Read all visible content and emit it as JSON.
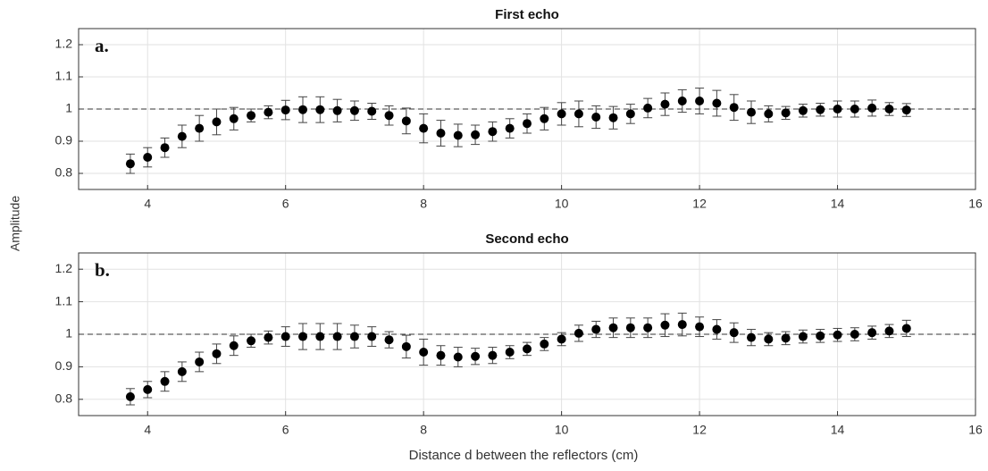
{
  "ylabel": "Amplitude",
  "chart_data": [
    {
      "type": "scatter",
      "title": "First echo",
      "annotation": "a.",
      "x": [
        3.75,
        4,
        4.25,
        4.5,
        4.75,
        5,
        5.25,
        5.5,
        5.75,
        6,
        6.25,
        6.5,
        6.75,
        7,
        7.25,
        7.5,
        7.75,
        8,
        8.25,
        8.5,
        8.75,
        9,
        9.25,
        9.5,
        9.75,
        10,
        10.25,
        10.5,
        10.75,
        11,
        11.25,
        11.5,
        11.75,
        12,
        12.25,
        12.5,
        12.75,
        13,
        13.25,
        13.5,
        13.75,
        14,
        14.25,
        14.5,
        14.75,
        15
      ],
      "values": [
        0.83,
        0.85,
        0.88,
        0.915,
        0.94,
        0.96,
        0.97,
        0.98,
        0.99,
        0.997,
        0.998,
        0.998,
        0.995,
        0.995,
        0.993,
        0.98,
        0.963,
        0.94,
        0.925,
        0.918,
        0.92,
        0.93,
        0.94,
        0.955,
        0.97,
        0.985,
        0.985,
        0.975,
        0.973,
        0.985,
        1.003,
        1.015,
        1.025,
        1.025,
        1.018,
        1.005,
        0.99,
        0.985,
        0.988,
        0.995,
        0.998,
        1.0,
        1.0,
        1.003,
        1.0,
        0.997
      ],
      "errors": [
        0.03,
        0.03,
        0.03,
        0.035,
        0.04,
        0.04,
        0.035,
        0.02,
        0.02,
        0.03,
        0.04,
        0.04,
        0.035,
        0.03,
        0.025,
        0.03,
        0.04,
        0.045,
        0.04,
        0.035,
        0.03,
        0.03,
        0.03,
        0.03,
        0.035,
        0.035,
        0.04,
        0.035,
        0.035,
        0.03,
        0.03,
        0.035,
        0.035,
        0.04,
        0.04,
        0.04,
        0.035,
        0.025,
        0.02,
        0.02,
        0.02,
        0.025,
        0.025,
        0.025,
        0.02,
        0.02
      ],
      "color": "#000000",
      "reference_line": 1,
      "xlim": [
        3,
        16
      ],
      "xticks": [
        4,
        6,
        8,
        10,
        12,
        14,
        16
      ],
      "ylim": [
        0.75,
        1.25
      ],
      "yticks": [
        0.8,
        0.9,
        1,
        1.1,
        1.2
      ],
      "grid": true
    },
    {
      "type": "scatter",
      "title": "Second echo",
      "annotation": "b.",
      "xlabel": "Distance d between the reflectors (cm)",
      "x": [
        3.75,
        4,
        4.25,
        4.5,
        4.75,
        5,
        5.25,
        5.5,
        5.75,
        6,
        6.25,
        6.5,
        6.75,
        7,
        7.25,
        7.5,
        7.75,
        8,
        8.25,
        8.5,
        8.75,
        9,
        9.25,
        9.5,
        9.75,
        10,
        10.25,
        10.5,
        10.75,
        11,
        11.25,
        11.5,
        11.75,
        12,
        12.25,
        12.5,
        12.75,
        13,
        13.25,
        13.5,
        13.75,
        14,
        14.25,
        14.5,
        14.75,
        15
      ],
      "values": [
        0.808,
        0.83,
        0.855,
        0.885,
        0.915,
        0.94,
        0.965,
        0.98,
        0.99,
        0.993,
        0.993,
        0.993,
        0.993,
        0.993,
        0.993,
        0.983,
        0.962,
        0.945,
        0.935,
        0.93,
        0.932,
        0.935,
        0.945,
        0.955,
        0.97,
        0.985,
        1.003,
        1.015,
        1.02,
        1.02,
        1.02,
        1.028,
        1.03,
        1.023,
        1.015,
        1.005,
        0.99,
        0.985,
        0.988,
        0.993,
        0.995,
        0.998,
        1.0,
        1.005,
        1.01,
        1.018
      ],
      "errors": [
        0.025,
        0.025,
        0.03,
        0.03,
        0.03,
        0.03,
        0.03,
        0.02,
        0.02,
        0.03,
        0.04,
        0.04,
        0.04,
        0.035,
        0.03,
        0.025,
        0.035,
        0.04,
        0.03,
        0.03,
        0.025,
        0.025,
        0.02,
        0.02,
        0.02,
        0.02,
        0.025,
        0.025,
        0.03,
        0.03,
        0.03,
        0.035,
        0.035,
        0.03,
        0.03,
        0.03,
        0.025,
        0.02,
        0.02,
        0.02,
        0.02,
        0.02,
        0.02,
        0.02,
        0.02,
        0.025
      ],
      "color": "#000000",
      "reference_line": 1,
      "xlim": [
        3,
        16
      ],
      "xticks": [
        4,
        6,
        8,
        10,
        12,
        14,
        16
      ],
      "ylim": [
        0.75,
        1.25
      ],
      "yticks": [
        0.8,
        0.9,
        1,
        1.1,
        1.2
      ],
      "grid": true
    }
  ]
}
